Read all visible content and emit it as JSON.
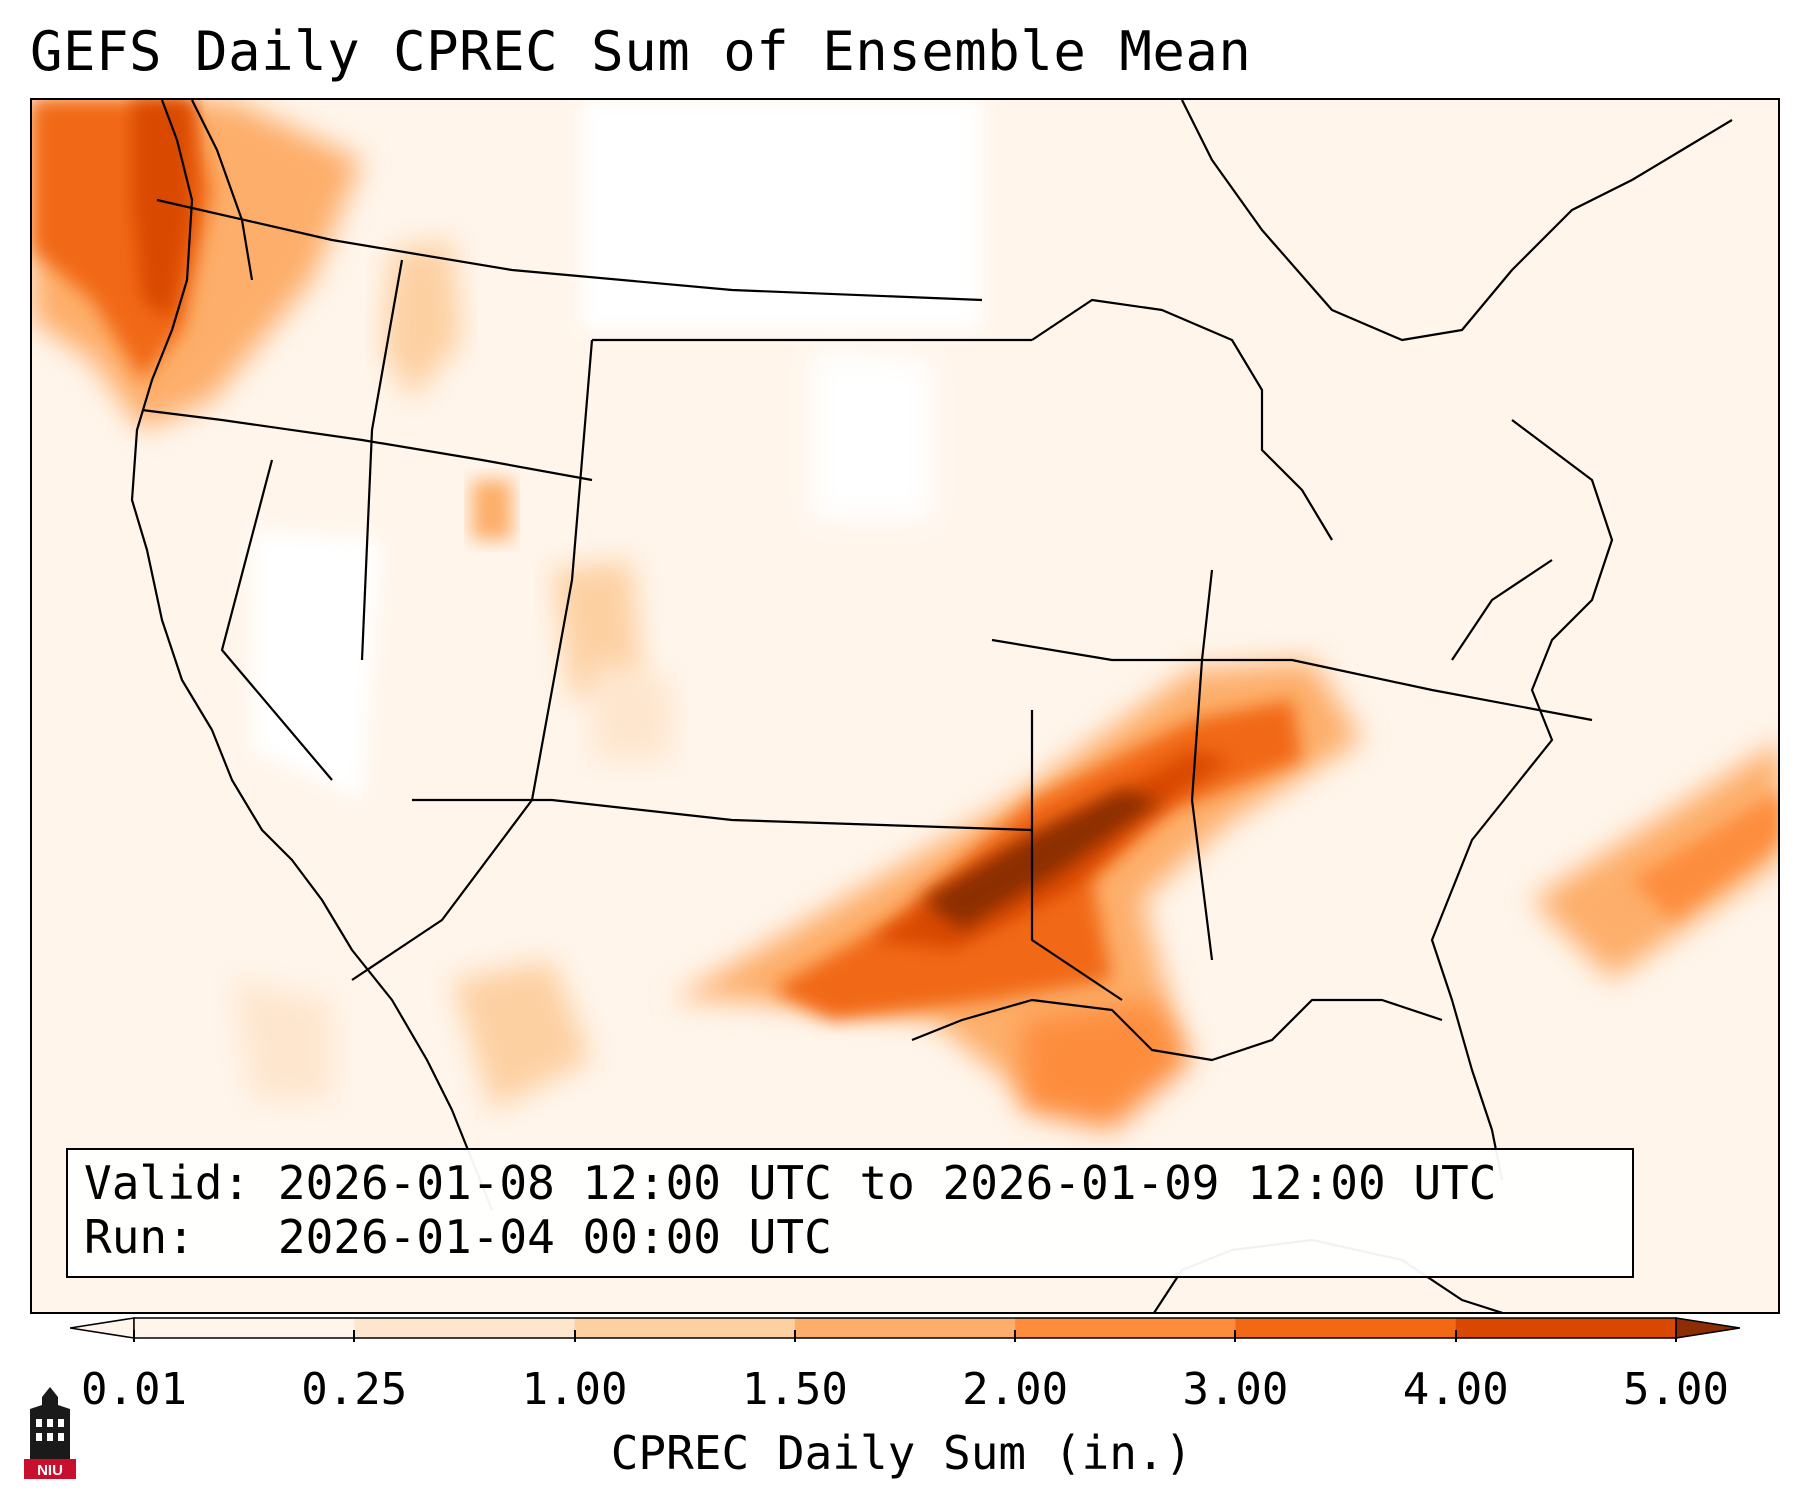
{
  "title": "GEFS Daily CPREC Sum of Ensemble Mean",
  "info": {
    "valid_label": "Valid:",
    "valid_value": "2026-01-08 12:00 UTC to 2026-01-09 12:00 UTC",
    "run_label": "Run:",
    "run_value": "2026-01-04 00:00 UTC"
  },
  "colorbar": {
    "label": "CPREC Daily Sum (in.)",
    "ticks": [
      "0.01",
      "0.25",
      "1.00",
      "1.50",
      "2.00",
      "3.00",
      "4.00",
      "5.00"
    ],
    "colors": [
      "#fff5eb",
      "#fee6ce",
      "#fdd0a2",
      "#fdae6b",
      "#fd8d3c",
      "#f16913",
      "#d94801",
      "#8c2d04"
    ],
    "extend": "both"
  },
  "logo": {
    "text": "NIU",
    "icon": "university-tower-icon"
  }
}
